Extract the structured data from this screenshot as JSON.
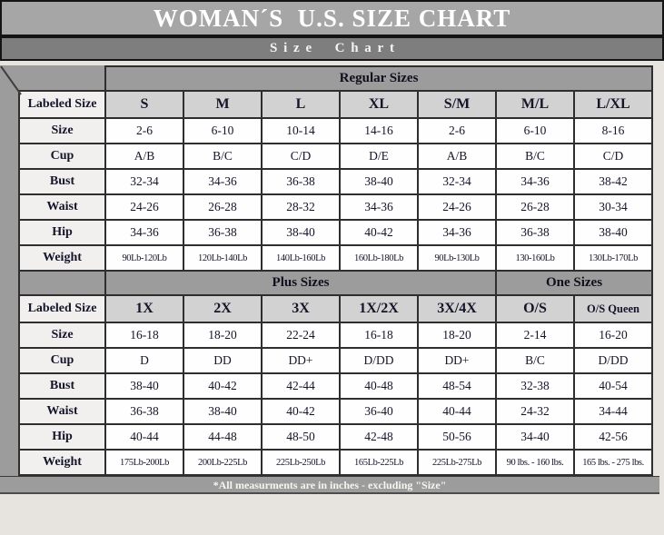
{
  "header": {
    "title": "WOMAN´S  U.S. SIZE CHART",
    "subtitle": "Size Chart"
  },
  "footer": {
    "note": "*All measurments are in inches - excluding \"Size\""
  },
  "colors": {
    "title_bar_bg": "#a6a6a6",
    "subtitle_bar_bg": "#7e7e7e",
    "frame_gray": "#9c9c9c",
    "column_header_bg": "#d2d2d2",
    "row_label_bg": "#f1f0ee",
    "cell_bg": "#fefefe",
    "border": "#2e2e2e",
    "text": "#15152a"
  },
  "chart_data": [
    {
      "type": "table",
      "sections": [
        {
          "label": "Regular Sizes",
          "span": 7
        }
      ],
      "row_header": "Labeled Size",
      "columns": [
        "S",
        "M",
        "L",
        "XL",
        "S/M",
        "M/L",
        "L/XL"
      ],
      "rows": [
        {
          "label": "Size",
          "values": [
            "2-6",
            "6-10",
            "10-14",
            "14-16",
            "2-6",
            "6-10",
            "8-16"
          ]
        },
        {
          "label": "Cup",
          "values": [
            "A/B",
            "B/C",
            "C/D",
            "D/E",
            "A/B",
            "B/C",
            "C/D"
          ]
        },
        {
          "label": "Bust",
          "values": [
            "32-34",
            "34-36",
            "36-38",
            "38-40",
            "32-34",
            "34-36",
            "38-42"
          ]
        },
        {
          "label": "Waist",
          "values": [
            "24-26",
            "26-28",
            "28-32",
            "34-36",
            "24-26",
            "26-28",
            "30-34"
          ]
        },
        {
          "label": "Hip",
          "values": [
            "34-36",
            "36-38",
            "38-40",
            "40-42",
            "34-36",
            "36-38",
            "38-40"
          ]
        },
        {
          "label": "Weight",
          "values": [
            "90Lb-120Lb",
            "120Lb-140Lb",
            "140Lb-160Lb",
            "160Lb-180Lb",
            "90Lb-130Lb",
            "130-160Lb",
            "130Lb-170Lb"
          ]
        }
      ]
    },
    {
      "type": "table",
      "sections": [
        {
          "label": "Plus Sizes",
          "span": 5
        },
        {
          "label": "One Sizes",
          "span": 2
        }
      ],
      "row_header": "Labeled Size",
      "columns": [
        "1X",
        "2X",
        "3X",
        "1X/2X",
        "3X/4X",
        "O/S",
        "O/S Queen"
      ],
      "rows": [
        {
          "label": "Size",
          "values": [
            "16-18",
            "18-20",
            "22-24",
            "16-18",
            "18-20",
            "2-14",
            "16-20"
          ]
        },
        {
          "label": "Cup",
          "values": [
            "D",
            "DD",
            "DD+",
            "D/DD",
            "DD+",
            "B/C",
            "D/DD"
          ]
        },
        {
          "label": "Bust",
          "values": [
            "38-40",
            "40-42",
            "42-44",
            "40-48",
            "48-54",
            "32-38",
            "40-54"
          ]
        },
        {
          "label": "Waist",
          "values": [
            "36-38",
            "38-40",
            "40-42",
            "36-40",
            "40-44",
            "24-32",
            "34-44"
          ]
        },
        {
          "label": "Hip",
          "values": [
            "40-44",
            "44-48",
            "48-50",
            "42-48",
            "50-56",
            "34-40",
            "42-56"
          ]
        },
        {
          "label": "Weight",
          "values": [
            "175Lb-200Lb",
            "200Lb-225Lb",
            "225Lb-250Lb",
            "165Lb-225Lb",
            "225Lb-275Lb",
            "90 lbs. - 160 lbs.",
            "165 lbs. - 275 lbs."
          ]
        }
      ]
    }
  ]
}
